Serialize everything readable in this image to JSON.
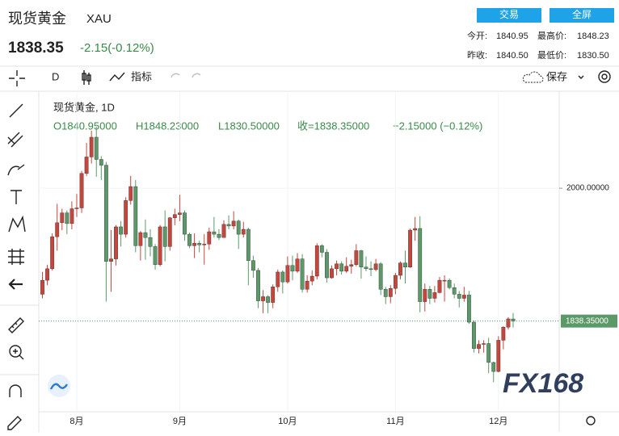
{
  "header": {
    "title": "现货黄金",
    "symbol": "XAU",
    "price": "1838.35",
    "change": "-2.15(-0.12%)",
    "buttons": [
      "交易",
      "全屏"
    ],
    "stats": [
      [
        "今开:",
        "1840.95",
        "最高价:",
        "1848.23"
      ],
      [
        "昨收:",
        "1840.50",
        "最低价:",
        "1830.50"
      ]
    ]
  },
  "toolbar": {
    "interval": "D",
    "indicators": "指标",
    "save": "保存"
  },
  "legend": {
    "name": "现货黄金, 1D",
    "open": "O1840.95000",
    "high": "H1848.23000",
    "low": "L1830.50000",
    "close": "收=1838.35000",
    "change": "−2.15000 (−0.12%)"
  },
  "watermark": "FX168",
  "chart_data": {
    "type": "candlestick",
    "categories": [
      null,
      null,
      null,
      null,
      null,
      null,
      null,
      "8月",
      null,
      null,
      null,
      null,
      null,
      null,
      null,
      null,
      null,
      null,
      null,
      null,
      null,
      null,
      null,
      null,
      null,
      null,
      null,
      null,
      "9月",
      null,
      null,
      null,
      null,
      null,
      null,
      null,
      null,
      null,
      null,
      null,
      null,
      null,
      null,
      null,
      null,
      null,
      null,
      null,
      null,
      null,
      "10月",
      null,
      null,
      null,
      null,
      null,
      null,
      null,
      null,
      null,
      null,
      null,
      null,
      null,
      null,
      null,
      null,
      null,
      null,
      null,
      null,
      null,
      "11月",
      null,
      null,
      null,
      null,
      null,
      null,
      null,
      null,
      null,
      null,
      null,
      null,
      null,
      null,
      null,
      null,
      null,
      null,
      null,
      null,
      "12月",
      null,
      null,
      null
    ],
    "open": [
      1871,
      1888,
      1902,
      1941,
      1958,
      1970,
      1957,
      1975,
      1976,
      2018,
      2038,
      2062,
      2035,
      2028,
      1911,
      1914,
      1953,
      1944,
      1985,
      2002,
      1930,
      1946,
      1940,
      1929,
      1907,
      1953,
      1929,
      1964,
      1968,
      1970,
      1944,
      1930,
      1933,
      1931,
      1932,
      1947,
      1944,
      1940,
      1956,
      1954,
      1960,
      1944,
      1950,
      1912,
      1900,
      1863,
      1868,
      1861,
      1880,
      1898,
      1886,
      1906,
      1899,
      1914,
      1877,
      1887,
      1893,
      1930,
      1922,
      1891,
      1902,
      1908,
      1899,
      1905,
      1907,
      1924,
      1904,
      1902,
      1901,
      1908,
      1877,
      1868,
      1878,
      1894,
      1909,
      1904,
      1949,
      1951,
      1862,
      1877,
      1866,
      1873,
      1888,
      1888,
      1879,
      1871,
      1866,
      1870,
      1837,
      1805,
      1810,
      1811,
      1788,
      1777,
      1815,
      1831,
      1840.95
    ],
    "high": [
      1898,
      1907,
      1945,
      1981,
      1975,
      1973,
      1984,
      1993,
      2021,
      2055,
      2070,
      2075,
      2039,
      2032,
      1949,
      1955,
      1960,
      1989,
      2015,
      2010,
      1948,
      1962,
      1950,
      1932,
      1955,
      1973,
      1965,
      1975,
      1992,
      1973,
      1946,
      1945,
      1936,
      1944,
      1952,
      1965,
      1950,
      1961,
      1967,
      1972,
      1962,
      1959,
      1952,
      1918,
      1903,
      1876,
      1870,
      1883,
      1901,
      1900,
      1917,
      1918,
      1921,
      1920,
      1894,
      1900,
      1933,
      1932,
      1926,
      1906,
      1912,
      1911,
      1916,
      1913,
      1932,
      1925,
      1917,
      1911,
      1914,
      1910,
      1880,
      1882,
      1897,
      1911,
      1924,
      1951,
      1965,
      1966,
      1884,
      1881,
      1881,
      1892,
      1894,
      1890,
      1884,
      1875,
      1880,
      1875,
      1839,
      1815,
      1815,
      1818,
      1789,
      1820,
      1832,
      1843,
      1848.23
    ],
    "low": [
      1866,
      1882,
      1900,
      1924,
      1949,
      1944,
      1950,
      1965,
      1970,
      2015,
      2030,
      2014,
      2010,
      1862,
      1874,
      1906,
      1929,
      1940,
      1980,
      1922,
      1912,
      1913,
      1917,
      1901,
      1905,
      1911,
      1924,
      1955,
      1960,
      1936,
      1927,
      1915,
      1922,
      1907,
      1925,
      1940,
      1937,
      1940,
      1950,
      1950,
      1926,
      1940,
      1882,
      1891,
      1854,
      1848,
      1848,
      1854,
      1874,
      1872,
      1884,
      1888,
      1897,
      1873,
      1873,
      1882,
      1889,
      1916,
      1885,
      1890,
      1894,
      1895,
      1897,
      1896,
      1905,
      1890,
      1899,
      1893,
      1899,
      1870,
      1859,
      1860,
      1871,
      1889,
      1884,
      1903,
      1936,
      1849,
      1850,
      1859,
      1861,
      1872,
      1862,
      1877,
      1866,
      1855,
      1862,
      1835,
      1800,
      1799,
      1800,
      1775,
      1764,
      1776,
      1804,
      1828,
      1830.5
    ],
    "close": [
      1888,
      1902,
      1941,
      1958,
      1970,
      1957,
      1975,
      1976,
      2018,
      2038,
      2062,
      2035,
      2028,
      1911,
      1914,
      1953,
      1944,
      1985,
      2002,
      1930,
      1946,
      1940,
      1929,
      1907,
      1953,
      1929,
      1964,
      1968,
      1970,
      1944,
      1930,
      1933,
      1931,
      1932,
      1947,
      1944,
      1940,
      1956,
      1954,
      1960,
      1944,
      1950,
      1912,
      1900,
      1863,
      1868,
      1861,
      1880,
      1898,
      1886,
      1906,
      1899,
      1914,
      1877,
      1887,
      1893,
      1930,
      1922,
      1891,
      1902,
      1908,
      1899,
      1905,
      1907,
      1924,
      1904,
      1902,
      1901,
      1908,
      1877,
      1868,
      1878,
      1894,
      1909,
      1904,
      1949,
      1951,
      1862,
      1877,
      1866,
      1873,
      1888,
      1888,
      1879,
      1871,
      1866,
      1870,
      1837,
      1805,
      1810,
      1811,
      1788,
      1777,
      1815,
      1831,
      1841,
      1838.35
    ],
    "up_color": "#c8453c",
    "down_color": "#5b9a68",
    "ylim": [
      1728,
      2116
    ],
    "yticks": [
      {
        "value": 2000,
        "label": "2000.00000"
      }
    ],
    "last_price": {
      "value": 1838.35,
      "label": "1838.35000"
    },
    "grid": true
  }
}
